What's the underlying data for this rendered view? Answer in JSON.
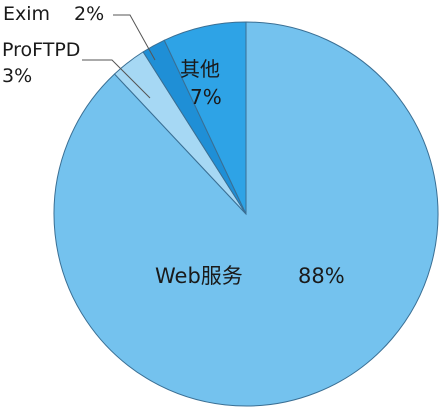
{
  "chart_data": {
    "type": "pie",
    "title": "",
    "slices": [
      {
        "label": "Web服务",
        "value": 88,
        "value_label": "88%",
        "color": "#74c2ee"
      },
      {
        "label": "ProFTPD",
        "value": 3,
        "value_label": "3%",
        "color": "#a6d8f4"
      },
      {
        "label": "Exim",
        "value": 2,
        "value_label": "2%",
        "color": "#1f8fd6"
      },
      {
        "label": "其他",
        "value": 7,
        "value_label": "7%",
        "color": "#2ea3e6"
      }
    ],
    "legend": "none"
  }
}
